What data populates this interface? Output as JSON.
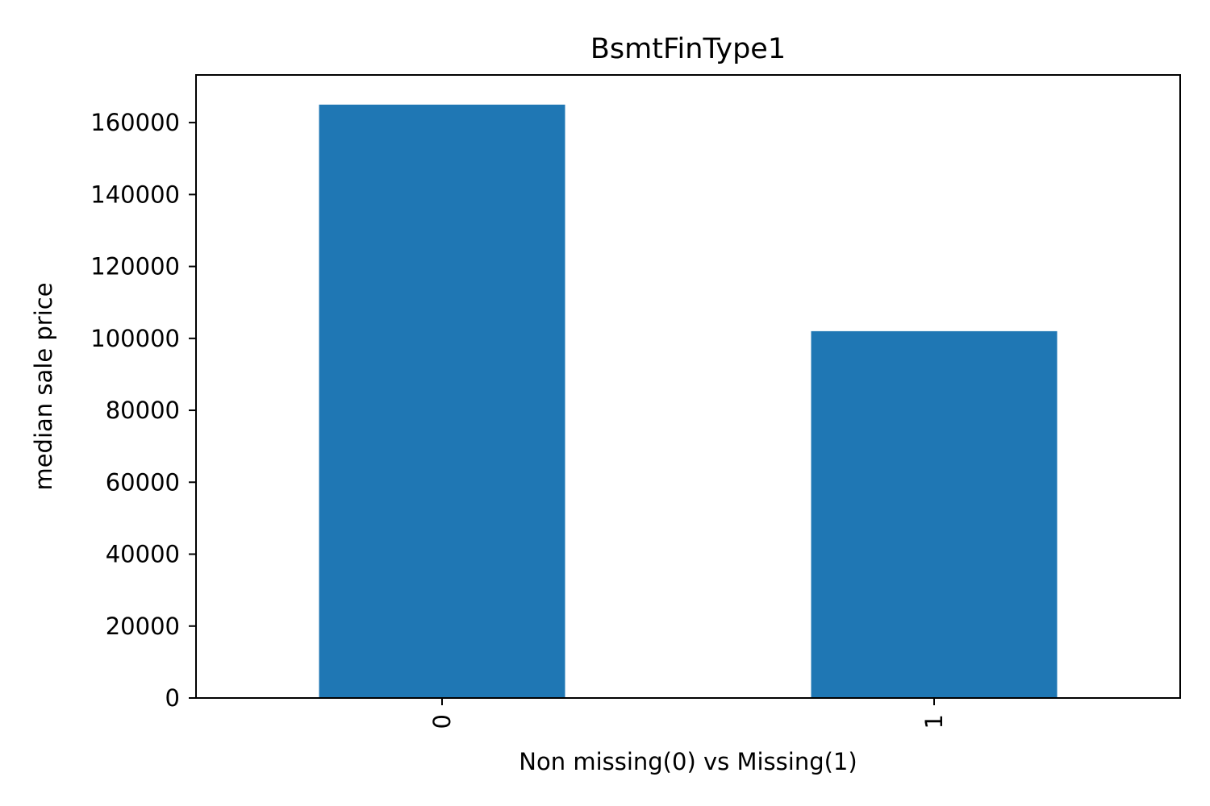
{
  "chart_data": {
    "type": "bar",
    "title": "BsmtFinType1",
    "xlabel": "Non missing(0) vs Missing(1)",
    "ylabel": "median sale price",
    "categories": [
      "0",
      "1"
    ],
    "values": [
      165000,
      102000
    ],
    "ylim": [
      0,
      173250
    ],
    "yticks": [
      0,
      20000,
      40000,
      60000,
      80000,
      100000,
      120000,
      140000,
      160000
    ],
    "ytick_labels": [
      "0",
      "20000",
      "40000",
      "60000",
      "80000",
      "100000",
      "120000",
      "140000",
      "160000"
    ],
    "xtick_rotation": "vertical",
    "grid": false,
    "legend": "none",
    "bar_color": "#1f77b4"
  }
}
